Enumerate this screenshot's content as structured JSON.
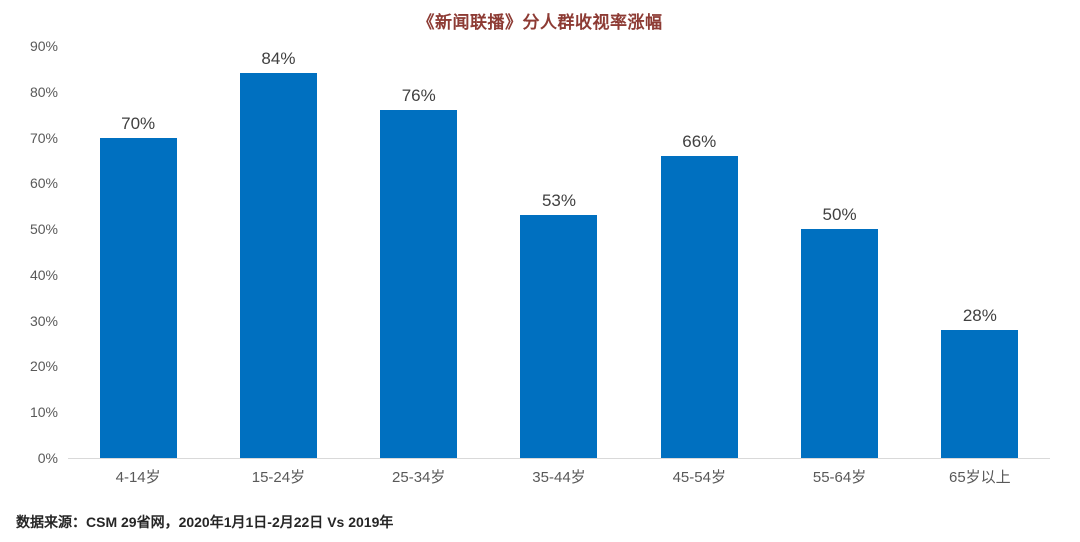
{
  "chart_data": {
    "type": "bar",
    "title": "《新闻联播》分人群收视率涨幅",
    "categories": [
      "4-14岁",
      "15-24岁",
      "25-34岁",
      "35-44岁",
      "45-54岁",
      "55-64岁",
      "65岁以上"
    ],
    "values": [
      70,
      84,
      76,
      53,
      66,
      50,
      28
    ],
    "value_labels": [
      "70%",
      "84%",
      "76%",
      "53%",
      "66%",
      "50%",
      "28%"
    ],
    "xlabel": "",
    "ylabel": "",
    "ylim": [
      0,
      90
    ],
    "yticks": [
      0,
      10,
      20,
      30,
      40,
      50,
      60,
      70,
      80,
      90
    ],
    "ytick_labels": [
      "0%",
      "10%",
      "20%",
      "30%",
      "40%",
      "50%",
      "60%",
      "70%",
      "80%",
      "90%"
    ],
    "grid": false,
    "legend": false,
    "colors": {
      "bar": "#0070C0",
      "title": "#8D3B34",
      "value_label": "#404040",
      "axis_label": "#595959",
      "baseline": "#D9D9D9",
      "source_note": "#262626"
    },
    "source_note": "数据来源：CSM 29省网，2020年1月1日-2月22日 Vs 2019年"
  }
}
